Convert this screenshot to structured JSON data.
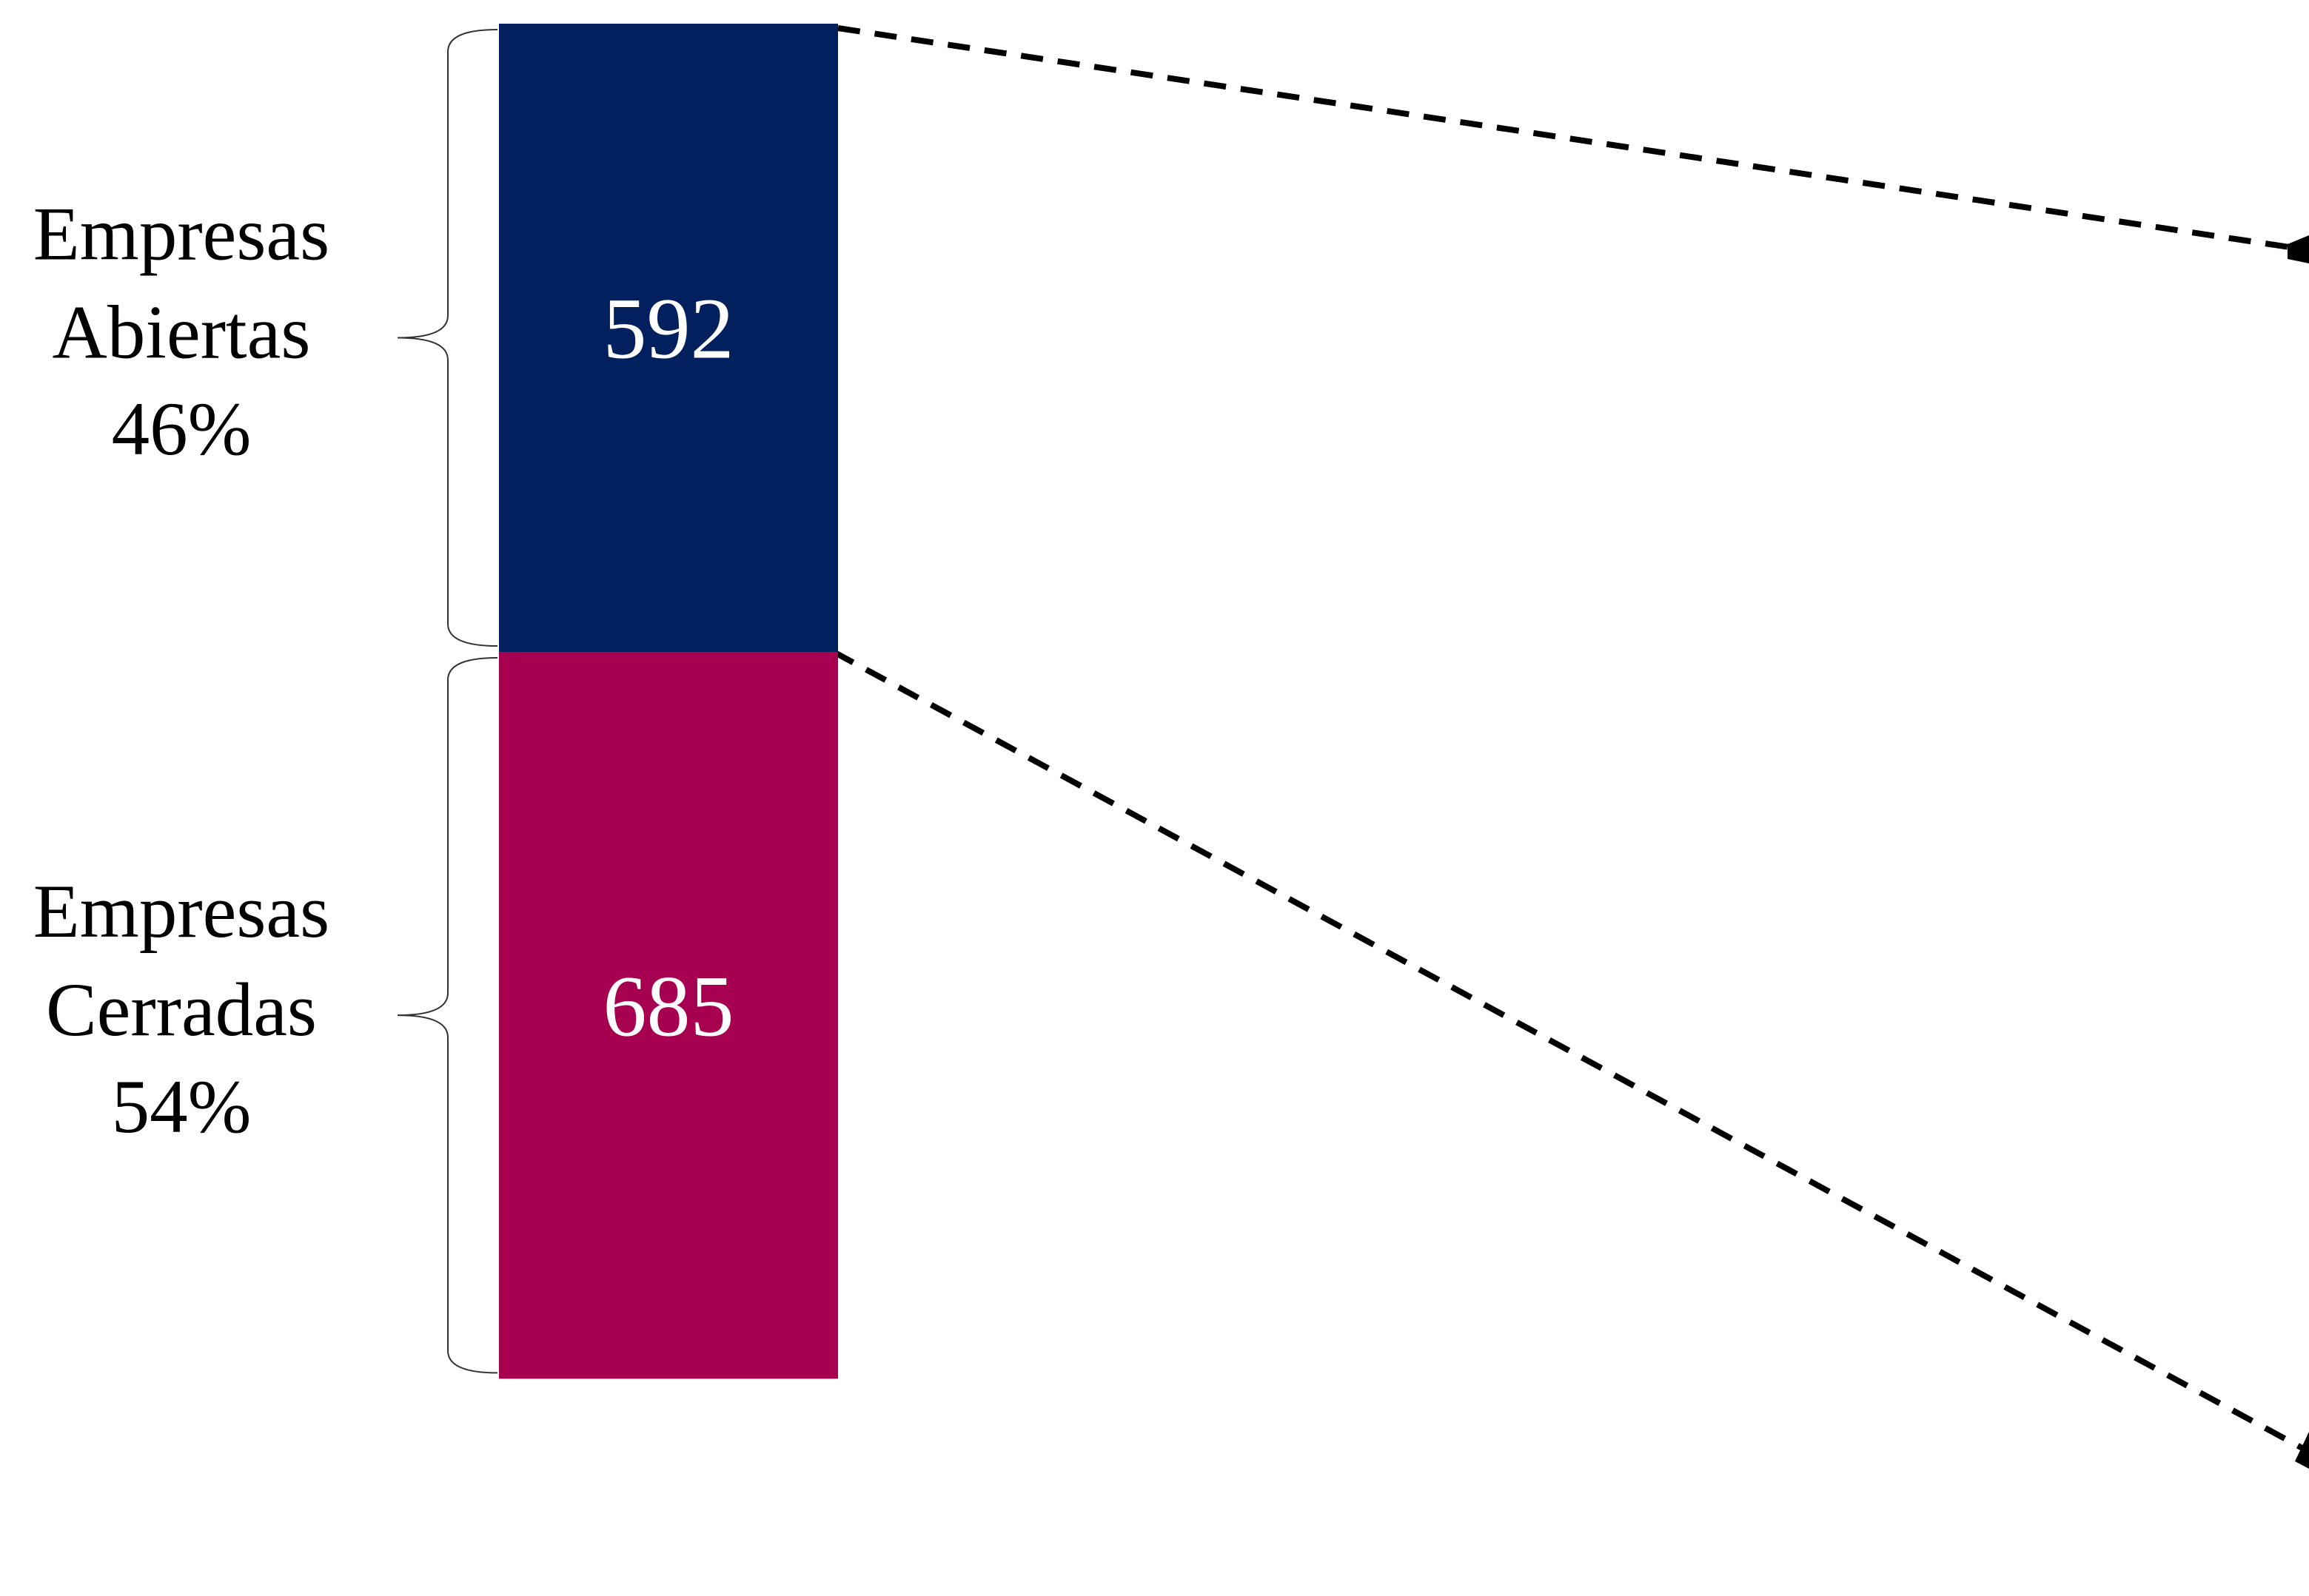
{
  "chart_data": {
    "type": "stacked-bar",
    "series": [
      {
        "name": "Empresas Abiertas",
        "color": "#02205e",
        "values": [
          592
        ],
        "share": {
          "value": 46,
          "label": "46%"
        }
      },
      {
        "name": "Empresas Cerradas",
        "color": "#a80050",
        "values": [
          685
        ],
        "share": {
          "value": 54,
          "label": "54%"
        }
      }
    ]
  }
}
